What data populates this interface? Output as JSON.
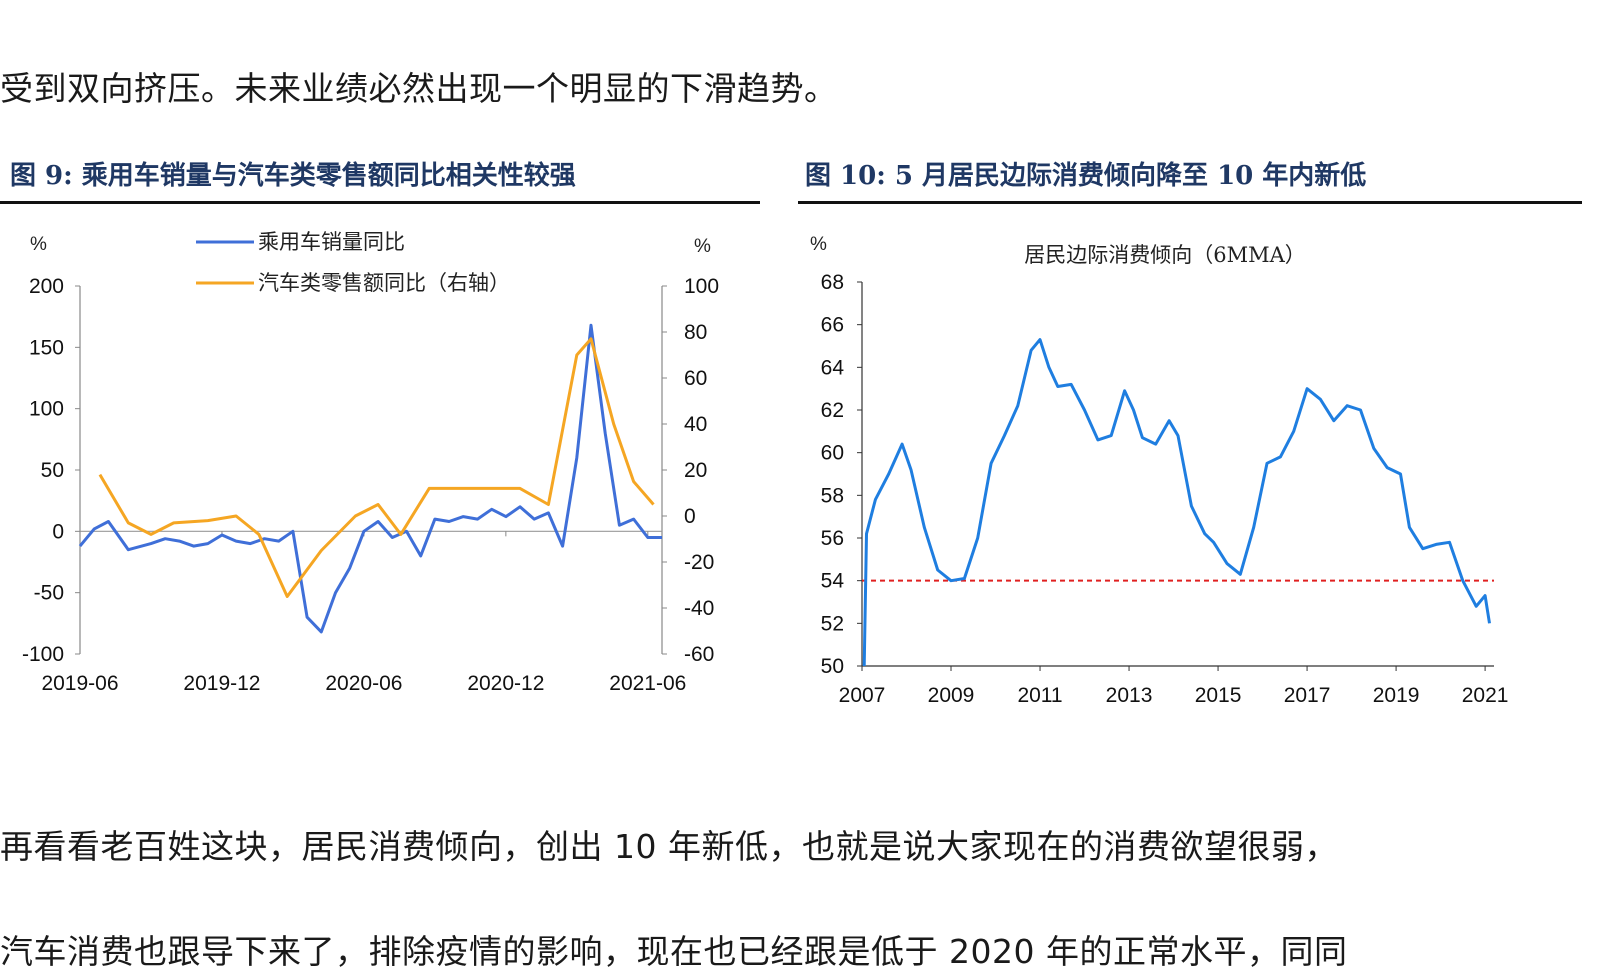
{
  "paragraphs": {
    "p1": "受到双向挤压。未来业绩必然出现一个明显的下滑趋势。",
    "p2": "再看看老百姓这块，居民消费倾向，创出 10 年新低，也就是说大家现在的消费欲望很弱，",
    "p3": "汽车消费也跟导下来了，排除疫情的影响，现在也已经跟是低于 2020 年的正常水平，同同"
  },
  "figures": {
    "fig1_title": "图 9:  乘用车销量与汽车类零售额同比相关性较强",
    "fig2_title": "图 10:  5 月居民边际消费倾向降至 10 年内新低"
  },
  "colors": {
    "blue": "#3f6fd8",
    "orange": "#f5a623",
    "blue2": "#1f7ee0",
    "red": "#e02020"
  },
  "chart_data": [
    {
      "type": "line",
      "title": "",
      "left_unit": "%",
      "right_unit": "%",
      "ylim": [
        -100,
        200
      ],
      "y2lim": [
        -60,
        100
      ],
      "yticks": [
        200,
        150,
        100,
        50,
        0,
        -50,
        -100
      ],
      "y2ticks": [
        100,
        80,
        60,
        40,
        20,
        0,
        -20,
        -40,
        -60
      ],
      "xticks": [
        "2019-06",
        "2019-12",
        "2020-06",
        "2020-12",
        "2021-06"
      ],
      "xlim": [
        2019.45,
        2021.5
      ],
      "series": [
        {
          "name": "乘用车销量同比",
          "axis": "left",
          "color": "#3f6fd8",
          "x": [
            2019.45,
            2019.5,
            2019.55,
            2019.62,
            2019.7,
            2019.75,
            2019.8,
            2019.85,
            2019.9,
            2019.95,
            2020.0,
            2020.05,
            2020.1,
            2020.15,
            2020.2,
            2020.25,
            2020.3,
            2020.35,
            2020.4,
            2020.45,
            2020.5,
            2020.55,
            2020.6,
            2020.65,
            2020.7,
            2020.75,
            2020.8,
            2020.85,
            2020.9,
            2020.95,
            2021.0,
            2021.05,
            2021.1,
            2021.15,
            2021.2,
            2021.25,
            2021.3,
            2021.35,
            2021.4,
            2021.45,
            2021.5
          ],
          "y": [
            -12,
            2,
            8,
            -15,
            -10,
            -6,
            -8,
            -12,
            -10,
            -3,
            -8,
            -10,
            -6,
            -8,
            0,
            -70,
            -82,
            -50,
            -30,
            0,
            8,
            -5,
            0,
            -20,
            10,
            8,
            12,
            10,
            18,
            12,
            20,
            10,
            15,
            -12,
            60,
            168,
            80,
            5,
            10,
            -5,
            -5
          ]
        },
        {
          "name": "汽车类零售额同比（右轴）",
          "axis": "right",
          "color": "#f5a623",
          "x": [
            2019.52,
            2019.62,
            2019.7,
            2019.78,
            2019.9,
            2020.0,
            2020.08,
            2020.18,
            2020.3,
            2020.42,
            2020.5,
            2020.58,
            2020.68,
            2020.8,
            2020.9,
            2021.0,
            2021.1,
            2021.2,
            2021.25,
            2021.33,
            2021.4,
            2021.47
          ],
          "y": [
            18,
            -3,
            -8,
            -3,
            -2,
            0,
            -8,
            -35,
            -15,
            0,
            5,
            -8,
            12,
            12,
            12,
            12,
            5,
            70,
            77,
            40,
            15,
            5
          ]
        }
      ]
    },
    {
      "type": "line",
      "title": "居民边际消费倾向（6MMA）",
      "unit": "%",
      "ylim": [
        50,
        68
      ],
      "yticks": [
        68,
        66,
        64,
        62,
        60,
        58,
        56,
        54,
        52,
        50
      ],
      "xticks": [
        "2007",
        "2009",
        "2011",
        "2013",
        "2015",
        "2017",
        "2019",
        "2021"
      ],
      "xlim": [
        2007,
        2021.2
      ],
      "reference_line": 54,
      "series": [
        {
          "name": "居民边际消费倾向（6MMA）",
          "color": "#1f7ee0",
          "x": [
            2007.05,
            2007.1,
            2007.3,
            2007.6,
            2007.9,
            2008.1,
            2008.4,
            2008.7,
            2009.0,
            2009.3,
            2009.6,
            2009.9,
            2010.2,
            2010.5,
            2010.8,
            2011.0,
            2011.2,
            2011.4,
            2011.7,
            2012.0,
            2012.3,
            2012.6,
            2012.9,
            2013.1,
            2013.3,
            2013.6,
            2013.9,
            2014.1,
            2014.4,
            2014.7,
            2014.9,
            2015.2,
            2015.5,
            2015.8,
            2016.1,
            2016.4,
            2016.7,
            2017.0,
            2017.3,
            2017.6,
            2017.9,
            2018.2,
            2018.5,
            2018.8,
            2019.1,
            2019.3,
            2019.6,
            2019.9,
            2020.2,
            2020.5,
            2020.8,
            2021.0,
            2021.1
          ],
          "y": [
            50,
            56.2,
            57.8,
            59.0,
            60.4,
            59.2,
            56.5,
            54.5,
            54.0,
            54.1,
            56.0,
            59.5,
            60.8,
            62.2,
            64.8,
            65.3,
            64.0,
            63.1,
            63.2,
            62.0,
            60.6,
            60.8,
            62.9,
            62.0,
            60.7,
            60.4,
            61.5,
            60.8,
            57.5,
            56.2,
            55.8,
            54.8,
            54.3,
            56.5,
            59.5,
            59.8,
            61.0,
            63.0,
            62.5,
            61.5,
            62.2,
            62.0,
            60.2,
            59.3,
            59.0,
            56.5,
            55.5,
            55.7,
            55.8,
            54.0,
            52.8,
            53.3,
            52.0
          ]
        }
      ]
    }
  ]
}
